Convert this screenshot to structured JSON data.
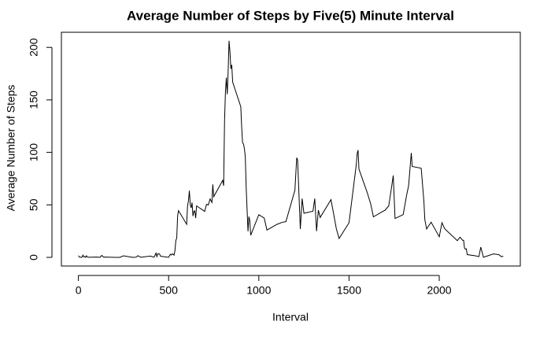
{
  "chart_data": {
    "type": "line",
    "title": "Average Number of Steps by Five(5) Minute Interval",
    "xlabel": "Interval",
    "ylabel": "Average Number of Steps",
    "x": [
      0,
      5,
      10,
      15,
      20,
      25,
      30,
      35,
      40,
      45,
      50,
      55,
      100,
      110,
      120,
      125,
      130,
      140,
      150,
      200,
      230,
      250,
      300,
      320,
      330,
      345,
      400,
      415,
      420,
      430,
      435,
      440,
      450,
      455,
      500,
      505,
      510,
      515,
      520,
      525,
      530,
      535,
      540,
      545,
      550,
      555,
      600,
      605,
      610,
      615,
      620,
      625,
      630,
      635,
      640,
      645,
      650,
      655,
      700,
      710,
      720,
      730,
      740,
      745,
      750,
      800,
      805,
      810,
      815,
      820,
      825,
      830,
      835,
      840,
      845,
      850,
      855,
      900,
      905,
      910,
      915,
      920,
      925,
      930,
      935,
      940,
      945,
      950,
      955,
      1000,
      1030,
      1045,
      1100,
      1130,
      1150,
      1200,
      1210,
      1215,
      1230,
      1240,
      1250,
      1300,
      1310,
      1320,
      1330,
      1340,
      1400,
      1430,
      1445,
      1500,
      1540,
      1545,
      1550,
      1555,
      1600,
      1620,
      1635,
      1700,
      1720,
      1735,
      1745,
      1755,
      1800,
      1820,
      1830,
      1845,
      1850,
      1900,
      1915,
      1920,
      1930,
      1940,
      1955,
      2000,
      2015,
      2030,
      2100,
      2115,
      2130,
      2135,
      2140,
      2145,
      2150,
      2155,
      2200,
      2220,
      2230,
      2245,
      2300,
      2330,
      2345,
      2355
    ],
    "series": [
      {
        "name": "steps",
        "color": "#000000",
        "values": [
          1.7,
          0.3,
          0.1,
          0.2,
          0.1,
          2.1,
          0.5,
          0.9,
          0,
          1.5,
          0.3,
          0.1,
          0.3,
          0.2,
          0,
          1.1,
          1.8,
          0.2,
          0.3,
          0,
          0,
          1.5,
          0,
          0.2,
          1.6,
          0.1,
          1.2,
          0.3,
          0.3,
          4.1,
          0.7,
          3.5,
          3.1,
          1.1,
          0,
          1.6,
          3,
          2.2,
          3.3,
          3,
          2.1,
          6.1,
          16,
          18.3,
          39.5,
          44.5,
          31.5,
          49.3,
          53.8,
          63.5,
          50,
          47.1,
          52.2,
          39.3,
          44,
          44.2,
          37.4,
          49,
          43.8,
          50.5,
          49.9,
          55.7,
          52.3,
          69.5,
          57.8,
          73.4,
          68.2,
          129.4,
          157.5,
          171.2,
          155.4,
          177.3,
          206.2,
          195.9,
          179.6,
          183.4,
          167,
          143.5,
          124,
          109.1,
          108.1,
          103.7,
          95.9,
          66.2,
          45.2,
          24.8,
          38.8,
          35,
          21,
          40.6,
          37.4,
          26,
          31.4,
          33.4,
          34,
          63.9,
          94.9,
          92.8,
          27,
          56,
          42,
          44,
          56,
          25,
          45,
          38,
          55,
          27,
          18,
          33,
          88,
          98.7,
          102.1,
          84,
          62.1,
          51,
          38.6,
          45,
          49,
          66,
          78,
          37,
          40.7,
          60,
          68,
          99.5,
          86.6,
          84.9,
          53,
          36,
          27,
          29.7,
          33.5,
          19.6,
          33,
          27.3,
          15.9,
          19.2,
          16.2,
          16.2,
          8.7,
          7.8,
          8.1,
          2.6,
          1.5,
          0.7,
          9.8,
          0.1,
          3.3,
          2.6,
          0.6,
          1.1
        ]
      }
    ],
    "xlim": [
      -94.2,
      2449.2
    ],
    "ylim": [
      -8.25,
      214.4
    ],
    "xticks": [
      0,
      500,
      1000,
      1500,
      2000
    ],
    "yticks": [
      0,
      50,
      100,
      150,
      200
    ]
  }
}
